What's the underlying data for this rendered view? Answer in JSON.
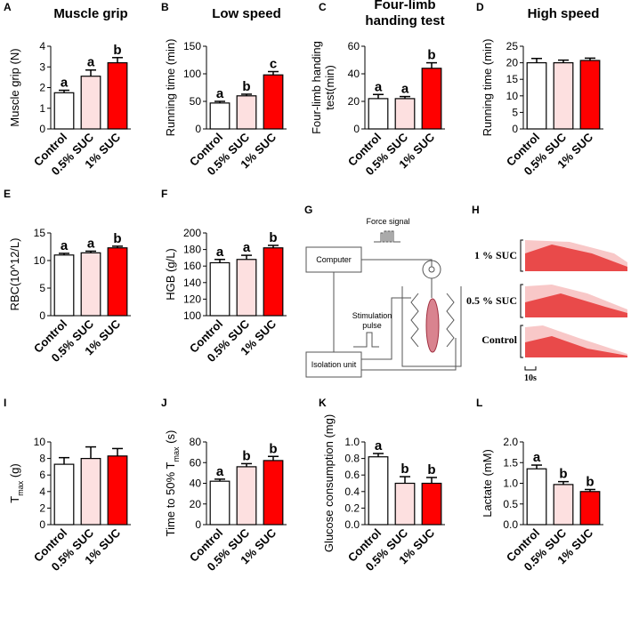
{
  "chart_data": [
    {
      "type": "bar",
      "panel": "A",
      "title": "Muscle grip",
      "ylabel": "Muscle grip (N)",
      "categories": [
        "Control",
        "0.5% SUC",
        "1% SUC"
      ],
      "values": [
        1.75,
        2.55,
        3.2
      ],
      "errors": [
        0.12,
        0.3,
        0.25
      ],
      "colors": [
        "#ffffff",
        "#fde0e0",
        "#ff0000"
      ],
      "annotations": [
        "a",
        "a",
        "b"
      ],
      "ylim": [
        0,
        4
      ],
      "yticks": [
        0,
        1,
        2,
        3,
        4
      ]
    },
    {
      "type": "bar",
      "panel": "B",
      "title": "Low speed",
      "ylabel": "Running time (min)",
      "categories": [
        "Control",
        "0.5% SUC",
        "1% SUC"
      ],
      "values": [
        47,
        60,
        98
      ],
      "errors": [
        3,
        3,
        6
      ],
      "colors": [
        "#ffffff",
        "#fde0e0",
        "#ff0000"
      ],
      "annotations": [
        "a",
        "b",
        "c"
      ],
      "ylim": [
        0,
        150
      ],
      "yticks": [
        0,
        50,
        100,
        150
      ]
    },
    {
      "type": "bar",
      "panel": "C",
      "title_lines": [
        "Four-limb",
        "handing test"
      ],
      "ylabel_lines": [
        "Four-limb handing",
        "test(min)"
      ],
      "categories": [
        "Control",
        "0.5% SUC",
        "1% SUC"
      ],
      "values": [
        22,
        22,
        44
      ],
      "errors": [
        3,
        1.5,
        4
      ],
      "colors": [
        "#ffffff",
        "#fde0e0",
        "#ff0000"
      ],
      "annotations": [
        "a",
        "a",
        "b"
      ],
      "ylim": [
        0,
        60
      ],
      "yticks": [
        0,
        20,
        40,
        60
      ]
    },
    {
      "type": "bar",
      "panel": "D",
      "title": "High speed",
      "ylabel": "Running time (min)",
      "categories": [
        "Control",
        "0.5% SUC",
        "1% SUC"
      ],
      "values": [
        20,
        20,
        20.7
      ],
      "errors": [
        1.3,
        0.8,
        0.7
      ],
      "colors": [
        "#ffffff",
        "#fde0e0",
        "#ff0000"
      ],
      "ylim": [
        0,
        25
      ],
      "yticks": [
        0,
        5,
        10,
        15,
        20,
        25
      ]
    },
    {
      "type": "bar",
      "panel": "E",
      "ylabel": "RBC(10^12/L)",
      "categories": [
        "Control",
        "0.5% SUC",
        "1% SUC"
      ],
      "values": [
        11,
        11.4,
        12.3
      ],
      "errors": [
        0.3,
        0.3,
        0.3
      ],
      "colors": [
        "#ffffff",
        "#fde0e0",
        "#ff0000"
      ],
      "annotations": [
        "a",
        "a",
        "b"
      ],
      "ylim": [
        0,
        15
      ],
      "yticks": [
        0,
        5,
        10,
        15
      ]
    },
    {
      "type": "bar",
      "panel": "F",
      "ylabel": "HGB (g/L)",
      "categories": [
        "Control",
        "0.5% SUC",
        "1% SUC"
      ],
      "values": [
        164,
        168,
        182
      ],
      "errors": [
        4,
        5,
        3
      ],
      "colors": [
        "#ffffff",
        "#fde0e0",
        "#ff0000"
      ],
      "annotations": [
        "a",
        "a",
        "b"
      ],
      "ylim": [
        100,
        200
      ],
      "yticks": [
        100,
        120,
        140,
        160,
        180,
        200
      ]
    },
    {
      "type": "bar",
      "panel": "I",
      "ylabel_parts": [
        "T",
        "max",
        " (g)"
      ],
      "categories": [
        "Control",
        "0.5% SUC",
        "1% SUC"
      ],
      "values": [
        7.3,
        8,
        8.3
      ],
      "errors": [
        0.8,
        1.4,
        0.9
      ],
      "colors": [
        "#ffffff",
        "#fde0e0",
        "#ff0000"
      ],
      "ylim": [
        0,
        10
      ],
      "yticks": [
        0,
        2,
        4,
        6,
        8,
        10
      ]
    },
    {
      "type": "bar",
      "panel": "J",
      "ylabel_parts": [
        "Time to 50% T",
        "max",
        " (s)"
      ],
      "categories": [
        "Control",
        "0.5% SUC",
        "1% SUC"
      ],
      "values": [
        42,
        56,
        62
      ],
      "errors": [
        2,
        3,
        4
      ],
      "colors": [
        "#ffffff",
        "#fde0e0",
        "#ff0000"
      ],
      "annotations": [
        "a",
        "b",
        "b"
      ],
      "ylim": [
        0,
        80
      ],
      "yticks": [
        0,
        20,
        40,
        60,
        80
      ]
    },
    {
      "type": "bar",
      "panel": "K",
      "ylabel": "Glucose consumption (mg)",
      "categories": [
        "Control",
        "0.5% SUC",
        "1% SUC"
      ],
      "values": [
        0.82,
        0.5,
        0.5
      ],
      "errors": [
        0.04,
        0.08,
        0.07
      ],
      "colors": [
        "#ffffff",
        "#fde0e0",
        "#ff0000"
      ],
      "annotations": [
        "a",
        "b",
        "b"
      ],
      "ylim": [
        0,
        1
      ],
      "yticks": [
        {
          "value": 0,
          "label": "0.0"
        },
        0.2,
        0.4,
        0.6,
        0.8,
        {
          "value": 1,
          "label": "1.0"
        }
      ]
    },
    {
      "type": "bar",
      "panel": "L",
      "ylabel": "Lactate (mM)",
      "categories": [
        "Control",
        "0.5% SUC",
        "1% SUC"
      ],
      "values": [
        1.35,
        0.97,
        0.8
      ],
      "errors": [
        0.09,
        0.07,
        0.05
      ],
      "colors": [
        "#ffffff",
        "#fde0e0",
        "#ff0000"
      ],
      "annotations": [
        "a",
        "b",
        "b"
      ],
      "ylim": [
        0,
        2
      ],
      "yticks": [
        {
          "value": 0,
          "label": "0.0"
        },
        0.5,
        {
          "value": 1,
          "label": "1.0"
        },
        1.5,
        {
          "value": 2,
          "label": "2.0"
        }
      ]
    }
  ],
  "diagram": {
    "panel_g": "G",
    "panel_h": "H",
    "computer": "Computer",
    "force_signal": "Force signal",
    "stimulation": [
      "Stimulation",
      "pulse"
    ],
    "isolation_unit": "Isolation unit",
    "traces": [
      "1 % SUC",
      "0.5 % SUC",
      "Control"
    ],
    "scale": "10s"
  }
}
